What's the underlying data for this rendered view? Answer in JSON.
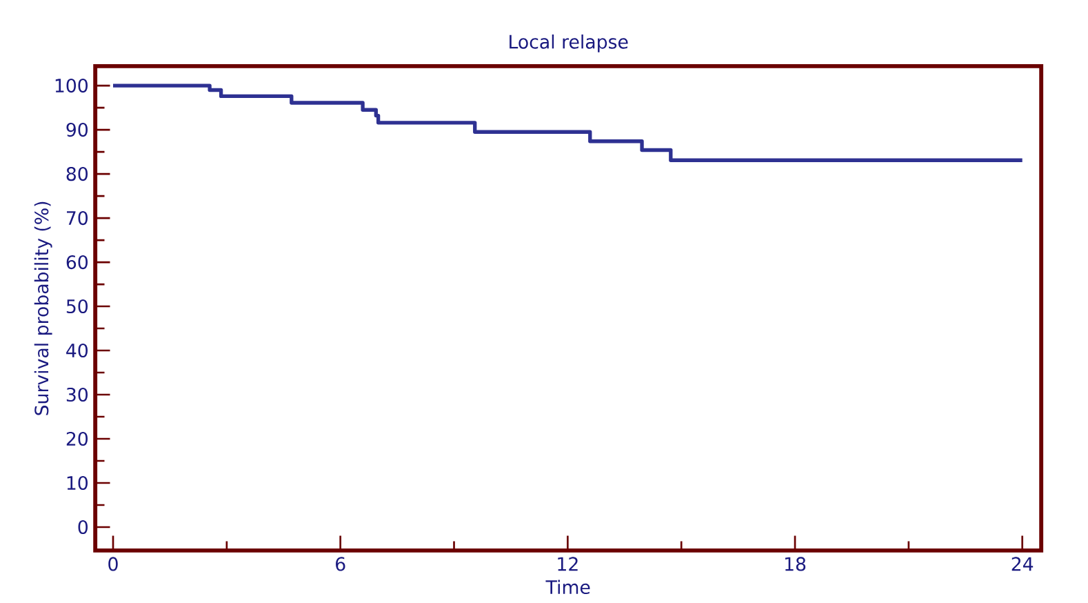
{
  "chart_data": {
    "type": "step",
    "title": "Local relapse",
    "xlabel": "Time",
    "ylabel": "Survival probability (%)",
    "x": [
      0,
      2.55,
      2.85,
      4.71,
      6.59,
      6.94,
      7.0,
      9.55,
      12.59,
      13.96,
      14.72,
      24
    ],
    "values": [
      100,
      99.0,
      97.6,
      96.1,
      94.5,
      93.2,
      91.6,
      89.5,
      87.4,
      85.4,
      83.1,
      83.1
    ],
    "color": "#2e3192",
    "xlim": [
      -0.47,
      24.5
    ],
    "ylim": [
      -5.3,
      104.4
    ],
    "xticks": [
      0,
      {
        "value": 3,
        "label": null
      },
      6,
      {
        "value": 9,
        "label": null
      },
      12,
      {
        "value": 15,
        "label": null
      },
      18,
      {
        "value": 21,
        "label": null
      },
      24
    ],
    "yticks": [
      0,
      {
        "value": 5,
        "label": null
      },
      10,
      {
        "value": 15,
        "label": null
      },
      20,
      {
        "value": 25,
        "label": null
      },
      30,
      {
        "value": 35,
        "label": null
      },
      40,
      {
        "value": 45,
        "label": null
      },
      50,
      {
        "value": 55,
        "label": null
      },
      60,
      {
        "value": 65,
        "label": null
      },
      70,
      {
        "value": 75,
        "label": null
      },
      80,
      {
        "value": 85,
        "label": null
      },
      90,
      {
        "value": 95,
        "label": null
      },
      100
    ],
    "marker": "none",
    "line_style": "solid"
  }
}
